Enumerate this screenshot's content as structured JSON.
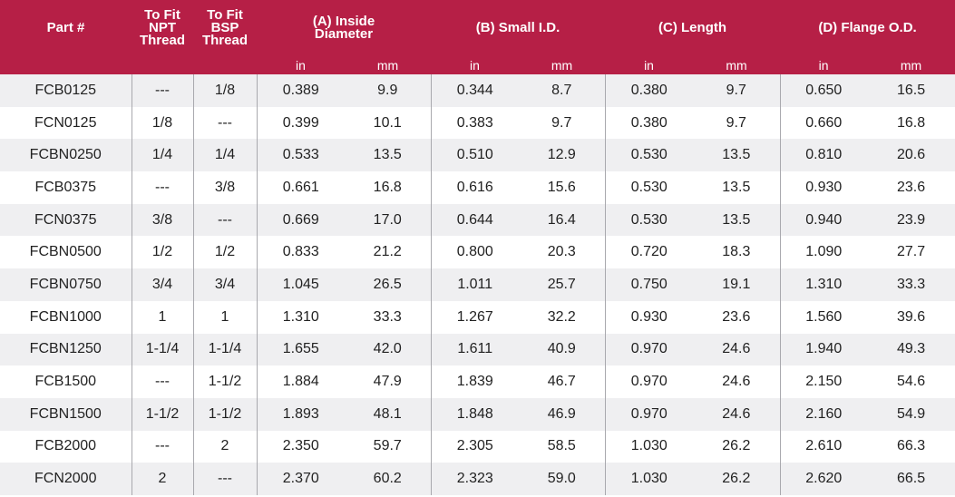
{
  "table": {
    "columns": [
      [
        "Part #"
      ],
      [
        "To Fit",
        "NPT",
        "Thread"
      ],
      [
        "To Fit",
        "BSP",
        "Thread"
      ],
      [
        "(A) Inside",
        "Diameter"
      ],
      [
        "(B) Small I.D."
      ],
      [
        "(C) Length"
      ],
      [
        "(D) Flange O.D."
      ]
    ],
    "units": [
      "in",
      "mm",
      "in",
      "mm",
      "in",
      "mm",
      "in",
      "mm"
    ],
    "rows": [
      [
        "FCB0125",
        "---",
        "1/8",
        "0.389",
        "9.9",
        "0.344",
        "8.7",
        "0.380",
        "9.7",
        "0.650",
        "16.5"
      ],
      [
        "FCN0125",
        "1/8",
        "---",
        "0.399",
        "10.1",
        "0.383",
        "9.7",
        "0.380",
        "9.7",
        "0.660",
        "16.8"
      ],
      [
        "FCBN0250",
        "1/4",
        "1/4",
        "0.533",
        "13.5",
        "0.510",
        "12.9",
        "0.530",
        "13.5",
        "0.810",
        "20.6"
      ],
      [
        "FCB0375",
        "---",
        "3/8",
        "0.661",
        "16.8",
        "0.616",
        "15.6",
        "0.530",
        "13.5",
        "0.930",
        "23.6"
      ],
      [
        "FCN0375",
        "3/8",
        "---",
        "0.669",
        "17.0",
        "0.644",
        "16.4",
        "0.530",
        "13.5",
        "0.940",
        "23.9"
      ],
      [
        "FCBN0500",
        "1/2",
        "1/2",
        "0.833",
        "21.2",
        "0.800",
        "20.3",
        "0.720",
        "18.3",
        "1.090",
        "27.7"
      ],
      [
        "FCBN0750",
        "3/4",
        "3/4",
        "1.045",
        "26.5",
        "1.011",
        "25.7",
        "0.750",
        "19.1",
        "1.310",
        "33.3"
      ],
      [
        "FCBN1000",
        "1",
        "1",
        "1.310",
        "33.3",
        "1.267",
        "32.2",
        "0.930",
        "23.6",
        "1.560",
        "39.6"
      ],
      [
        "FCBN1250",
        "1-1/4",
        "1-1/4",
        "1.655",
        "42.0",
        "1.611",
        "40.9",
        "0.970",
        "24.6",
        "1.940",
        "49.3"
      ],
      [
        "FCB1500",
        "---",
        "1-1/2",
        "1.884",
        "47.9",
        "1.839",
        "46.7",
        "0.970",
        "24.6",
        "2.150",
        "54.6"
      ],
      [
        "FCBN1500",
        "1-1/2",
        "1-1/2",
        "1.893",
        "48.1",
        "1.848",
        "46.9",
        "0.970",
        "24.6",
        "2.160",
        "54.9"
      ],
      [
        "FCB2000",
        "---",
        "2",
        "2.350",
        "59.7",
        "2.305",
        "58.5",
        "1.030",
        "26.2",
        "2.610",
        "66.3"
      ],
      [
        "FCN2000",
        "2",
        "---",
        "2.370",
        "60.2",
        "2.323",
        "59.0",
        "1.030",
        "26.2",
        "2.620",
        "66.5"
      ]
    ]
  }
}
